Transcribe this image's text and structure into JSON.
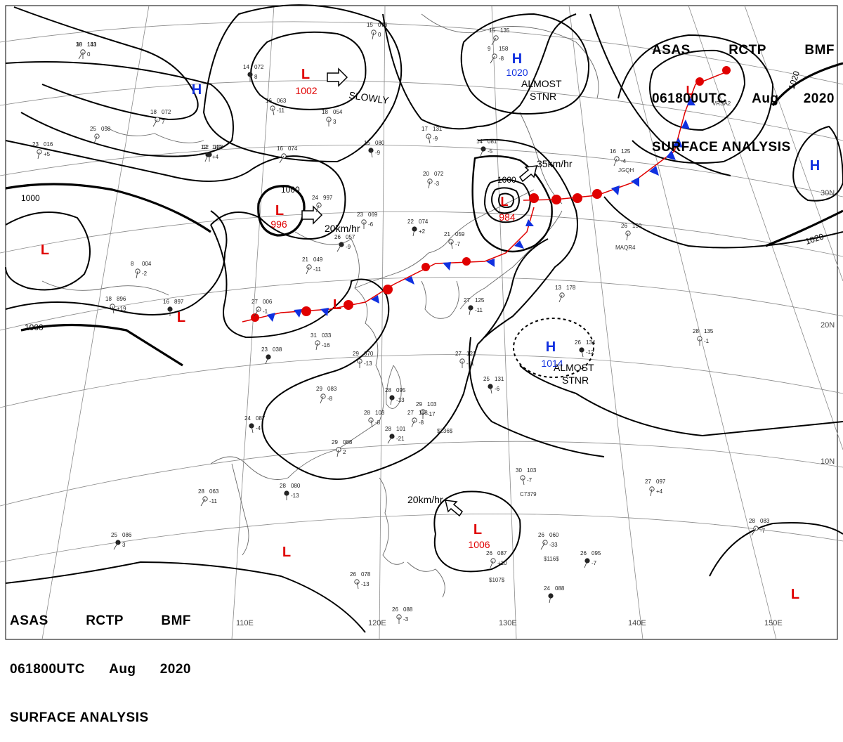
{
  "header": {
    "line1": [
      "ASAS",
      "RCTP",
      "BMF"
    ],
    "line2": [
      "061800UTC",
      "Aug",
      "2020"
    ],
    "line3": "SURFACE ANALYSIS"
  },
  "colors": {
    "low": "#e00000",
    "high": "#1030e0",
    "isobar": "#000000",
    "grid": "#888888",
    "coast": "#666666",
    "warm_front": "#e00000",
    "cold_front": "#1030e0"
  },
  "lon_labels": [
    "110E",
    "120E",
    "130E",
    "140E",
    "150E"
  ],
  "lat_labels": [
    "30N",
    "20N",
    "10N"
  ],
  "pressure_systems": [
    {
      "id": "low-north",
      "type": "L",
      "pressure": "1002"
    },
    {
      "id": "low-north-china",
      "type": "L",
      "pressure": "996"
    },
    {
      "id": "low-korea",
      "type": "L",
      "pressure": "984"
    },
    {
      "id": "low-philippine-sea",
      "type": "L",
      "pressure": "1006"
    },
    {
      "id": "low-west",
      "type": "L",
      "pressure": ""
    },
    {
      "id": "low-tibet",
      "type": "L",
      "pressure": ""
    },
    {
      "id": "low-front",
      "type": "L",
      "pressure": ""
    },
    {
      "id": "low-indochina",
      "type": "L",
      "pressure": ""
    },
    {
      "id": "low-southeast",
      "type": "L",
      "pressure": ""
    },
    {
      "id": "low-northeast",
      "type": "L",
      "pressure": ""
    },
    {
      "id": "high-okhotsk",
      "type": "H",
      "pressure": "1020"
    },
    {
      "id": "high-pacific",
      "type": "H",
      "pressure": "1014"
    },
    {
      "id": "high-siberia",
      "type": "H",
      "pressure": ""
    },
    {
      "id": "high-east",
      "type": "H",
      "pressure": ""
    }
  ],
  "isobar_labels": [
    "1000",
    "1000",
    "1000",
    "1000",
    "1020",
    "1020"
  ],
  "movements": [
    "SLOWLY",
    "20km/hr",
    "35km/hr",
    "20km/hr"
  ],
  "notes": [
    "ALMOST",
    "STNR",
    "ALMOST",
    "STNR"
  ],
  "station_plots": [
    "18 143 0",
    "25 058",
    "23 016 +5",
    "14 072 8",
    "16 063 -11",
    "18 072 7",
    "12 149 +4",
    "15 076 0",
    "18 054 3",
    "15 080 -9",
    "16 074",
    "24 997",
    "22 074 +2",
    "23 069 -6",
    "21 059 -7",
    "26 057 -9",
    "21 049 -11",
    "8 004 -2",
    "16 897",
    "18 896 +19",
    "27 006 -1",
    "23 038",
    "31 033 -16",
    "29 070 -13",
    "24 087 -4",
    "28 063 -11",
    "29 083 -8",
    "28 095 -13",
    "29 103 -17",
    "28 103 -8",
    "28 101 -21",
    "27 118 -8",
    "29 088 2",
    "28 080 -13",
    "30 103 -7",
    "26 060 -33",
    "26 095 -7",
    "27 097 +4",
    "28 135 -1",
    "26 134 -12",
    "28 083 -7",
    "26 087 +10",
    "24 088",
    "26 088 -3",
    "26 078 -13",
    "25 086 3",
    "16 125 -4",
    "26 150",
    "12 123",
    "17 131 -9",
    "15 135",
    "14 081 -5",
    "20 072 -3",
    "27 121 -11",
    "25 131 -6",
    "9 158 -8",
    "13 178",
    "27 125 -11",
    "30 131"
  ],
  "station_ids": [
    "JGQH",
    "MAQR4",
    "VRSA2",
    "C7379",
    "$116$",
    "$107$",
    "$236$"
  ]
}
